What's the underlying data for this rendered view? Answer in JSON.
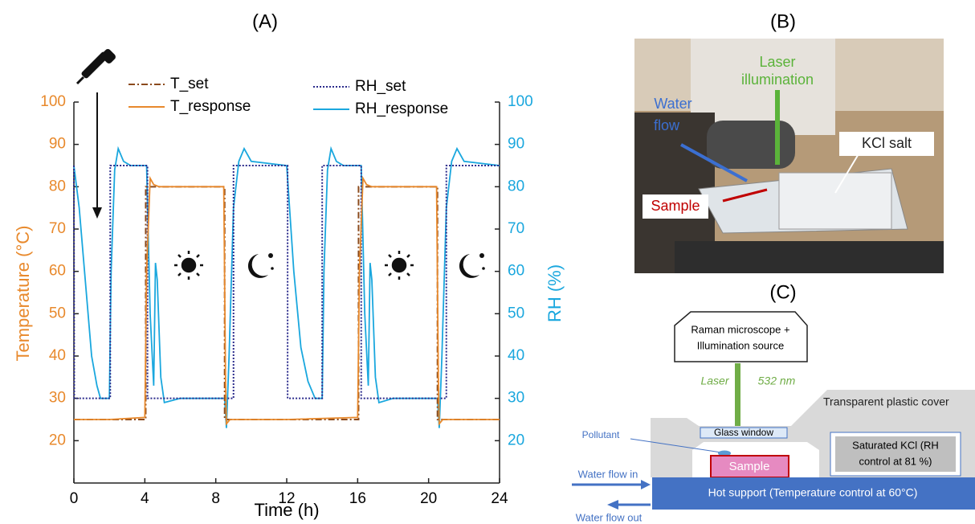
{
  "chart_data": {
    "type": "line",
    "title": "(A)",
    "x_label": "Time (h)",
    "y_label": "Temperature (°C)",
    "y2_label": "RH (%)",
    "xlim": [
      0,
      24
    ],
    "xticks": [
      0,
      4,
      8,
      12,
      16,
      20,
      24
    ],
    "ylim": [
      10,
      100
    ],
    "yticks": [
      20,
      30,
      40,
      50,
      60,
      70,
      80,
      90,
      100
    ],
    "y2lim": [
      10,
      100
    ],
    "y2ticks": [
      20,
      30,
      40,
      50,
      60,
      70,
      80,
      90,
      100
    ],
    "y_color": "#e8892c",
    "y2_color": "#1aa7de",
    "series": [
      {
        "name": "T_set",
        "color": "#8b4a1c",
        "dash": "dashdot",
        "x": [
          0,
          4.05,
          4.05,
          8.5,
          8.5,
          16.05,
          16.05,
          20.5,
          20.5,
          24
        ],
        "values": [
          25,
          25,
          80,
          80,
          25,
          25,
          80,
          80,
          25,
          25
        ]
      },
      {
        "name": "T_response",
        "color": "#e8892c",
        "dash": "solid",
        "x": [
          0,
          1.5,
          2,
          4.0,
          4.1,
          4.3,
          4.5,
          4.8,
          8.45,
          8.55,
          8.6,
          8.8,
          12,
          16.0,
          16.1,
          16.3,
          16.5,
          16.8,
          20.45,
          20.55,
          20.6,
          20.8,
          24
        ],
        "values": [
          25,
          25,
          25,
          25.5,
          60,
          82,
          80.5,
          80,
          80,
          35,
          24,
          25,
          25,
          25.5,
          60,
          82,
          80.5,
          80,
          80,
          35,
          24,
          25,
          25
        ]
      },
      {
        "name": "RH_set",
        "color": "#2b2b8c",
        "dash": "dotted",
        "axis": "y2",
        "x": [
          0,
          0.02,
          2.05,
          2.05,
          4.15,
          4.15,
          9.0,
          9.0,
          12.05,
          12.05,
          14.0,
          14.0,
          16.2,
          16.2,
          21.0,
          21.0,
          24
        ],
        "values": [
          85,
          30,
          30,
          85,
          85,
          30,
          30,
          85,
          85,
          30,
          30,
          85,
          85,
          30,
          30,
          85,
          85
        ]
      },
      {
        "name": "RH_response",
        "color": "#1aa7de",
        "dash": "solid",
        "axis": "y2",
        "x": [
          0,
          0.3,
          0.7,
          1.0,
          1.3,
          1.5,
          2.0,
          2.1,
          2.3,
          2.5,
          2.8,
          3.2,
          4.1,
          4.3,
          4.5,
          4.6,
          4.7,
          4.9,
          5.1,
          6,
          8.5,
          8.6,
          8.75,
          9.0,
          9.3,
          9.6,
          10,
          12.0,
          12.4,
          12.8,
          13.2,
          13.6,
          14.0,
          14.1,
          14.3,
          14.5,
          14.8,
          15.2,
          16.2,
          16.4,
          16.6,
          16.7,
          16.8,
          17.0,
          17.2,
          18,
          20.5,
          20.6,
          20.75,
          21.0,
          21.3,
          21.6,
          22,
          24
        ],
        "values": [
          85,
          75,
          55,
          40,
          33,
          30,
          30,
          60,
          84,
          89,
          86,
          85,
          85,
          50,
          33,
          62,
          58,
          35,
          29,
          30,
          30,
          23,
          40,
          75,
          86,
          89,
          86,
          85,
          60,
          42,
          34,
          30,
          30,
          60,
          84,
          89,
          86,
          85,
          85,
          50,
          33,
          62,
          58,
          35,
          29,
          30,
          30,
          23,
          40,
          75,
          86,
          89,
          86,
          85
        ]
      }
    ]
  },
  "photo": {
    "title": "(B)",
    "laser": [
      "Laser",
      "illumination"
    ],
    "water": [
      "Water",
      "flow"
    ],
    "salt": "KCl salt",
    "sample": "Sample"
  },
  "diagram": {
    "title": "(C)",
    "microscope": [
      "Raman microscope +",
      "Illumination source"
    ],
    "laser": "Laser",
    "wavelength": "532 nm",
    "cover": "Transparent plastic cover",
    "window": "Glass window",
    "pollutant": "Pollutant",
    "sample": "Sample",
    "kcl": [
      "Saturated KCl (RH",
      "control at 81 %)"
    ],
    "flow_in": "Water flow in",
    "flow_out": "Water flow out",
    "support": "Hot support (Temperature control at 60°C)"
  }
}
